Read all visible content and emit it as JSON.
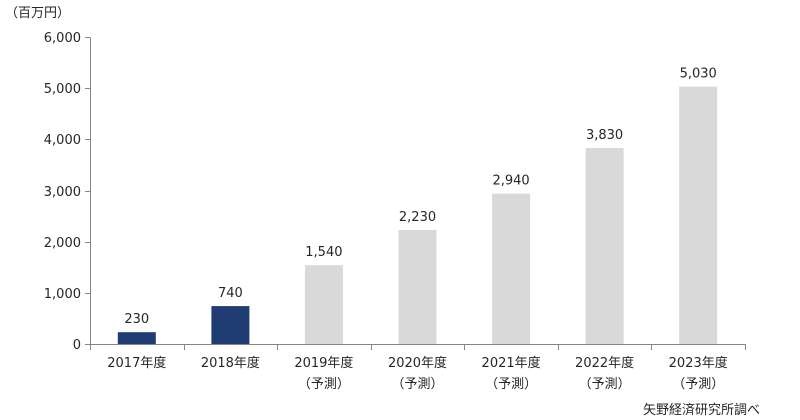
{
  "chart_data": {
    "type": "bar",
    "categories": [
      "2017年度",
      "2018年度",
      "2019年度",
      "2020年度",
      "2021年度",
      "2022年度",
      "2023年度"
    ],
    "sublabels": [
      "",
      "",
      "（予測）",
      "（予測）",
      "（予測）",
      "（予測）",
      "（予測）"
    ],
    "values": [
      230,
      740,
      1540,
      2230,
      2940,
      3830,
      5030
    ],
    "data_labels": [
      "230",
      "740",
      "1,540",
      "2,230",
      "2,940",
      "3,830",
      "5,030"
    ],
    "bar_colors": [
      "#1f3c73",
      "#1f3c73",
      "#d9d9d9",
      "#d9d9d9",
      "#d9d9d9",
      "#d9d9d9",
      "#d9d9d9"
    ],
    "ylabel": "（百万円）",
    "ylim": [
      0,
      6000
    ],
    "yticks": [
      0,
      1000,
      2000,
      3000,
      4000,
      5000,
      6000
    ],
    "ytick_labels": [
      "0",
      "1,000",
      "2,000",
      "3,000",
      "4,000",
      "5,000",
      "6,000"
    ],
    "grid": false,
    "legend": "none",
    "source": "矢野経済研究所調べ"
  }
}
